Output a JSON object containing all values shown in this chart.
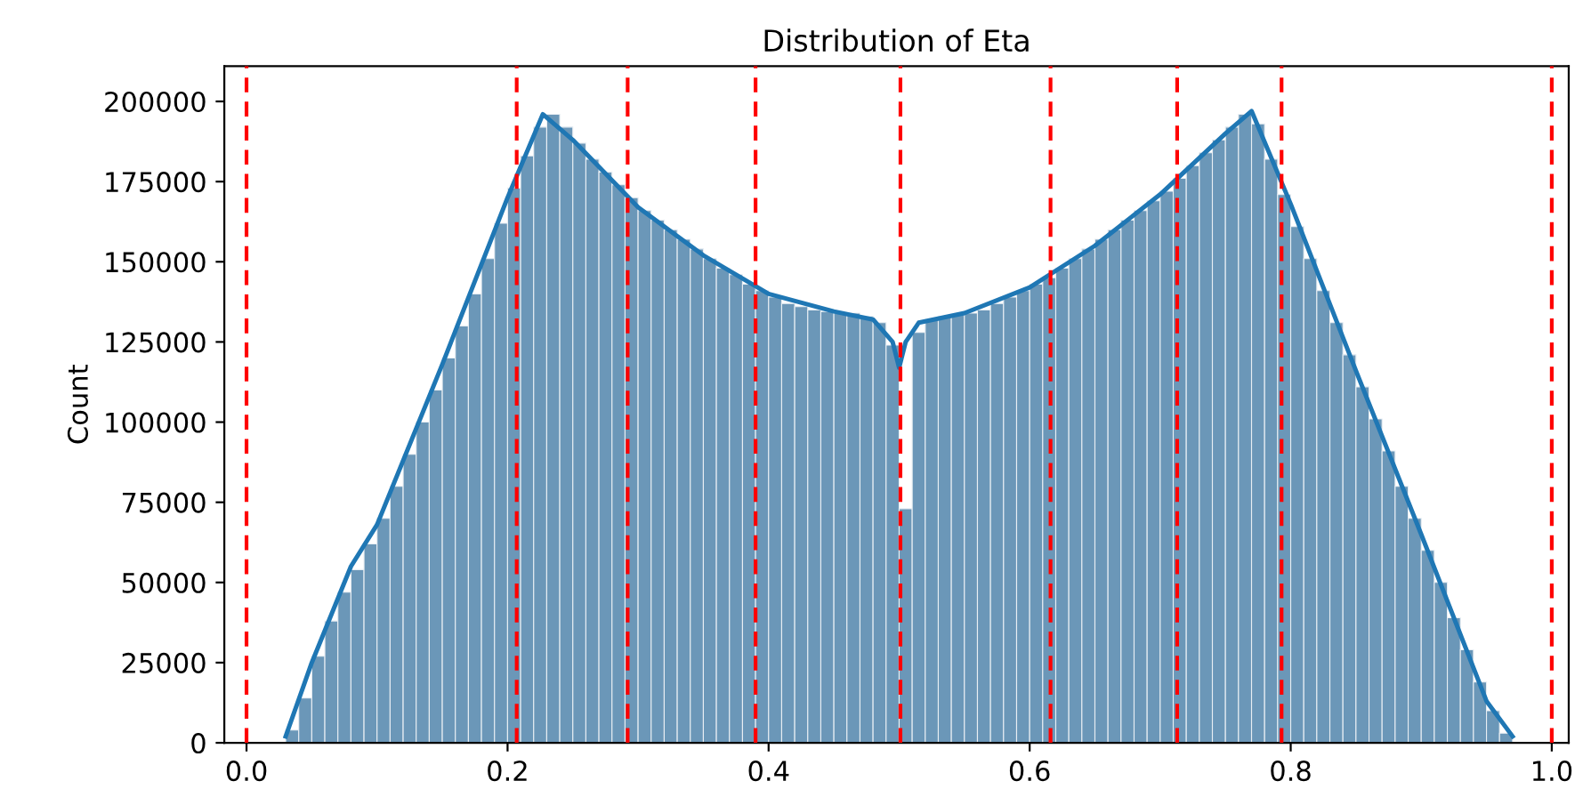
{
  "chart_data": {
    "type": "histogram",
    "title": "Distribution of Eta",
    "ylabel": "Count",
    "xlim": [
      -0.017,
      1.013
    ],
    "ylim": [
      0,
      211000
    ],
    "xticks": [
      {
        "value": 0,
        "label": "0.0"
      },
      {
        "value": 0.2,
        "label": "0.2"
      },
      {
        "value": 0.4,
        "label": "0.4"
      },
      {
        "value": 0.6,
        "label": "0.6"
      },
      {
        "value": 0.8,
        "label": "0.8"
      },
      {
        "value": 1,
        "label": "1.0"
      }
    ],
    "yticks": [
      0,
      25000,
      50000,
      75000,
      100000,
      125000,
      150000,
      175000,
      200000
    ],
    "grid": false,
    "legend": false,
    "series": [
      {
        "color": "#6b97b8",
        "bins": [
          0.03,
          0.04,
          0.05,
          0.06,
          0.07,
          0.08,
          0.09,
          0.1,
          0.11,
          0.12,
          0.13,
          0.14,
          0.15,
          0.16,
          0.17,
          0.18,
          0.19,
          0.2,
          0.21,
          0.22,
          0.23,
          0.24,
          0.25,
          0.26,
          0.27,
          0.28,
          0.29,
          0.3,
          0.31,
          0.32,
          0.33,
          0.34,
          0.35,
          0.36,
          0.37,
          0.38,
          0.39,
          0.4,
          0.41,
          0.42,
          0.43,
          0.44,
          0.45,
          0.46,
          0.47,
          0.48,
          0.49,
          0.5,
          0.51,
          0.52,
          0.53,
          0.54,
          0.55,
          0.56,
          0.57,
          0.58,
          0.59,
          0.6,
          0.61,
          0.62,
          0.63,
          0.64,
          0.65,
          0.66,
          0.67,
          0.68,
          0.69,
          0.7,
          0.71,
          0.72,
          0.73,
          0.74,
          0.75,
          0.76,
          0.77,
          0.78,
          0.79,
          0.8,
          0.81,
          0.82,
          0.83,
          0.84,
          0.85,
          0.86,
          0.87,
          0.88,
          0.89,
          0.9,
          0.91,
          0.92,
          0.93,
          0.94,
          0.95,
          0.96,
          0.97
        ],
        "values": [
          4000,
          14000,
          27000,
          38000,
          47000,
          54000,
          62000,
          70000,
          80000,
          90000,
          100000,
          110000,
          120000,
          130000,
          140000,
          151000,
          162000,
          173000,
          183000,
          192000,
          196000,
          192000,
          187000,
          182000,
          178000,
          174000,
          170000,
          166000,
          163000,
          160000,
          157000,
          154000,
          151000,
          148000,
          146000,
          143000,
          141000,
          139000,
          137000,
          136000,
          135000,
          134500,
          134000,
          134000,
          133000,
          131000,
          124000,
          73000,
          128000,
          132000,
          133000,
          133500,
          134000,
          135000,
          137000,
          139000,
          141000,
          143000,
          145000,
          148000,
          151000,
          154000,
          157000,
          160000,
          163000,
          166000,
          169000,
          172000,
          176000,
          180000,
          184000,
          188000,
          192000,
          196000,
          193000,
          182000,
          171000,
          161000,
          151000,
          141000,
          131000,
          121000,
          111000,
          101000,
          91000,
          80000,
          70000,
          60000,
          50000,
          39000,
          29000,
          19000,
          10000,
          3000
        ]
      },
      {
        "type": "line",
        "color": "#1f77b4",
        "x": [
          0.03,
          0.05,
          0.08,
          0.1,
          0.15,
          0.2,
          0.227,
          0.25,
          0.3,
          0.35,
          0.4,
          0.45,
          0.48,
          0.495,
          0.5,
          0.505,
          0.515,
          0.55,
          0.6,
          0.65,
          0.7,
          0.75,
          0.77,
          0.8,
          0.85,
          0.9,
          0.95,
          0.97
        ],
        "values": [
          2000,
          25000,
          55000,
          68000,
          118000,
          170000,
          196000,
          188000,
          167000,
          152000,
          140000,
          134500,
          132000,
          125000,
          117000,
          125000,
          131000,
          134000,
          142000,
          155000,
          171000,
          190000,
          197000,
          168000,
          116000,
          65000,
          13000,
          2000
        ]
      }
    ],
    "ref_lines": [
      {
        "axis": "x",
        "value": 0.0,
        "color": "#ff0000",
        "line_style": "dashed"
      },
      {
        "axis": "x",
        "value": 0.207,
        "color": "#ff0000",
        "line_style": "dashed"
      },
      {
        "axis": "x",
        "value": 0.292,
        "color": "#ff0000",
        "line_style": "dashed"
      },
      {
        "axis": "x",
        "value": 0.39,
        "color": "#ff0000",
        "line_style": "dashed"
      },
      {
        "axis": "x",
        "value": 0.501,
        "color": "#ff0000",
        "line_style": "dashed"
      },
      {
        "axis": "x",
        "value": 0.616,
        "color": "#ff0000",
        "line_style": "dashed"
      },
      {
        "axis": "x",
        "value": 0.713,
        "color": "#ff0000",
        "line_style": "dashed"
      },
      {
        "axis": "x",
        "value": 0.793,
        "color": "#ff0000",
        "line_style": "dashed"
      },
      {
        "axis": "x",
        "value": 1.0,
        "color": "#ff0000",
        "line_style": "dashed"
      }
    ]
  }
}
